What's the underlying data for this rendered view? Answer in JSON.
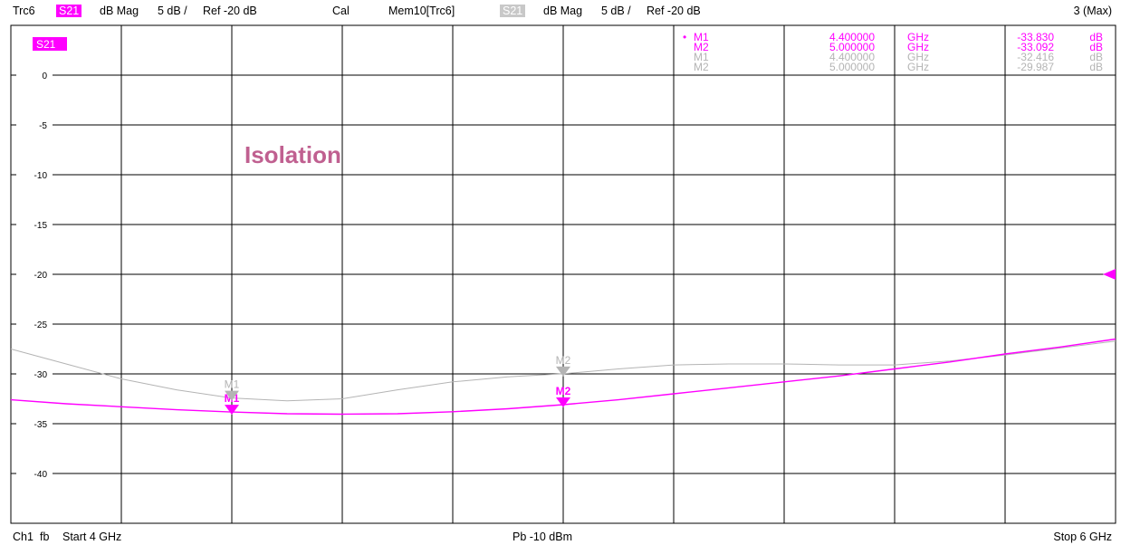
{
  "header": {
    "trace": "Trc6",
    "param": "S21",
    "format": "dB Mag",
    "scale": "5 dB /",
    "ref": "Ref -20 dB",
    "cal": "Cal",
    "mem_trace": "Mem10[Trc6]",
    "mem_param": "S21",
    "mem_format": "dB Mag",
    "mem_scale": "5 dB /",
    "mem_ref": "Ref -20 dB",
    "max": "3 (Max)"
  },
  "footer": {
    "channel": "Ch1",
    "mode": "fb",
    "start": "Start 4 GHz",
    "power": "Pb -10 dBm",
    "stop": "Stop 6 GHz"
  },
  "colors": {
    "trace": "#ff00ff",
    "memory": "#b4b4b4",
    "grid": "#000000"
  },
  "chart_data": {
    "type": "line",
    "title": "Isolation",
    "trace_label": "S21",
    "xlim": [
      4.0,
      6.0
    ],
    "ylim": [
      -45,
      5
    ],
    "yticks": [
      0,
      -5,
      -10,
      -15,
      -20,
      -25,
      -30,
      -35,
      -40
    ],
    "ytick_labels": [
      "0",
      "-5",
      "-10",
      "-15",
      "-20",
      "-25",
      "-30",
      "-35",
      "-40"
    ],
    "ref_level": -20,
    "series": [
      {
        "role": "trace",
        "x": [
          4.0,
          4.1,
          4.2,
          4.3,
          4.4,
          4.5,
          4.6,
          4.7,
          4.8,
          4.9,
          5.0,
          5.1,
          5.2,
          5.3,
          5.4,
          5.5,
          5.6,
          5.7,
          5.8,
          5.9,
          6.0
        ],
        "y": [
          -32.6,
          -33.0,
          -33.3,
          -33.6,
          -33.83,
          -34.0,
          -34.05,
          -34.0,
          -33.8,
          -33.5,
          -33.09,
          -32.6,
          -32.0,
          -31.4,
          -30.8,
          -30.2,
          -29.5,
          -28.8,
          -28.0,
          -27.3,
          -26.5
        ]
      },
      {
        "role": "memory",
        "x": [
          4.0,
          4.1,
          4.2,
          4.3,
          4.4,
          4.5,
          4.6,
          4.7,
          4.8,
          4.9,
          5.0,
          5.1,
          5.2,
          5.3,
          5.4,
          5.5,
          5.6,
          5.7,
          5.8,
          5.9,
          6.0
        ],
        "y": [
          -27.5,
          -29.0,
          -30.5,
          -31.6,
          -32.42,
          -32.7,
          -32.5,
          -31.6,
          -30.8,
          -30.3,
          -29.99,
          -29.5,
          -29.1,
          -29.0,
          -29.0,
          -29.1,
          -29.1,
          -28.7,
          -28.1,
          -27.4,
          -26.7
        ]
      }
    ],
    "markers": [
      {
        "name": "M1",
        "role": "trace",
        "x": 4.4,
        "y": -33.83,
        "freq": "4.400000",
        "unit": "GHz",
        "value": "-33.830",
        "vunit": "dB",
        "active": true
      },
      {
        "name": "M2",
        "role": "trace",
        "x": 5.0,
        "y": -33.092,
        "freq": "5.000000",
        "unit": "GHz",
        "value": "-33.092",
        "vunit": "dB",
        "active": false
      },
      {
        "name": "M1",
        "role": "memory",
        "x": 4.4,
        "y": -32.416,
        "freq": "4.400000",
        "unit": "GHz",
        "value": "-32.416",
        "vunit": "dB",
        "active": false
      },
      {
        "name": "M2",
        "role": "memory",
        "x": 5.0,
        "y": -29.987,
        "freq": "5.000000",
        "unit": "GHz",
        "value": "-29.987",
        "vunit": "dB",
        "active": false
      }
    ]
  }
}
